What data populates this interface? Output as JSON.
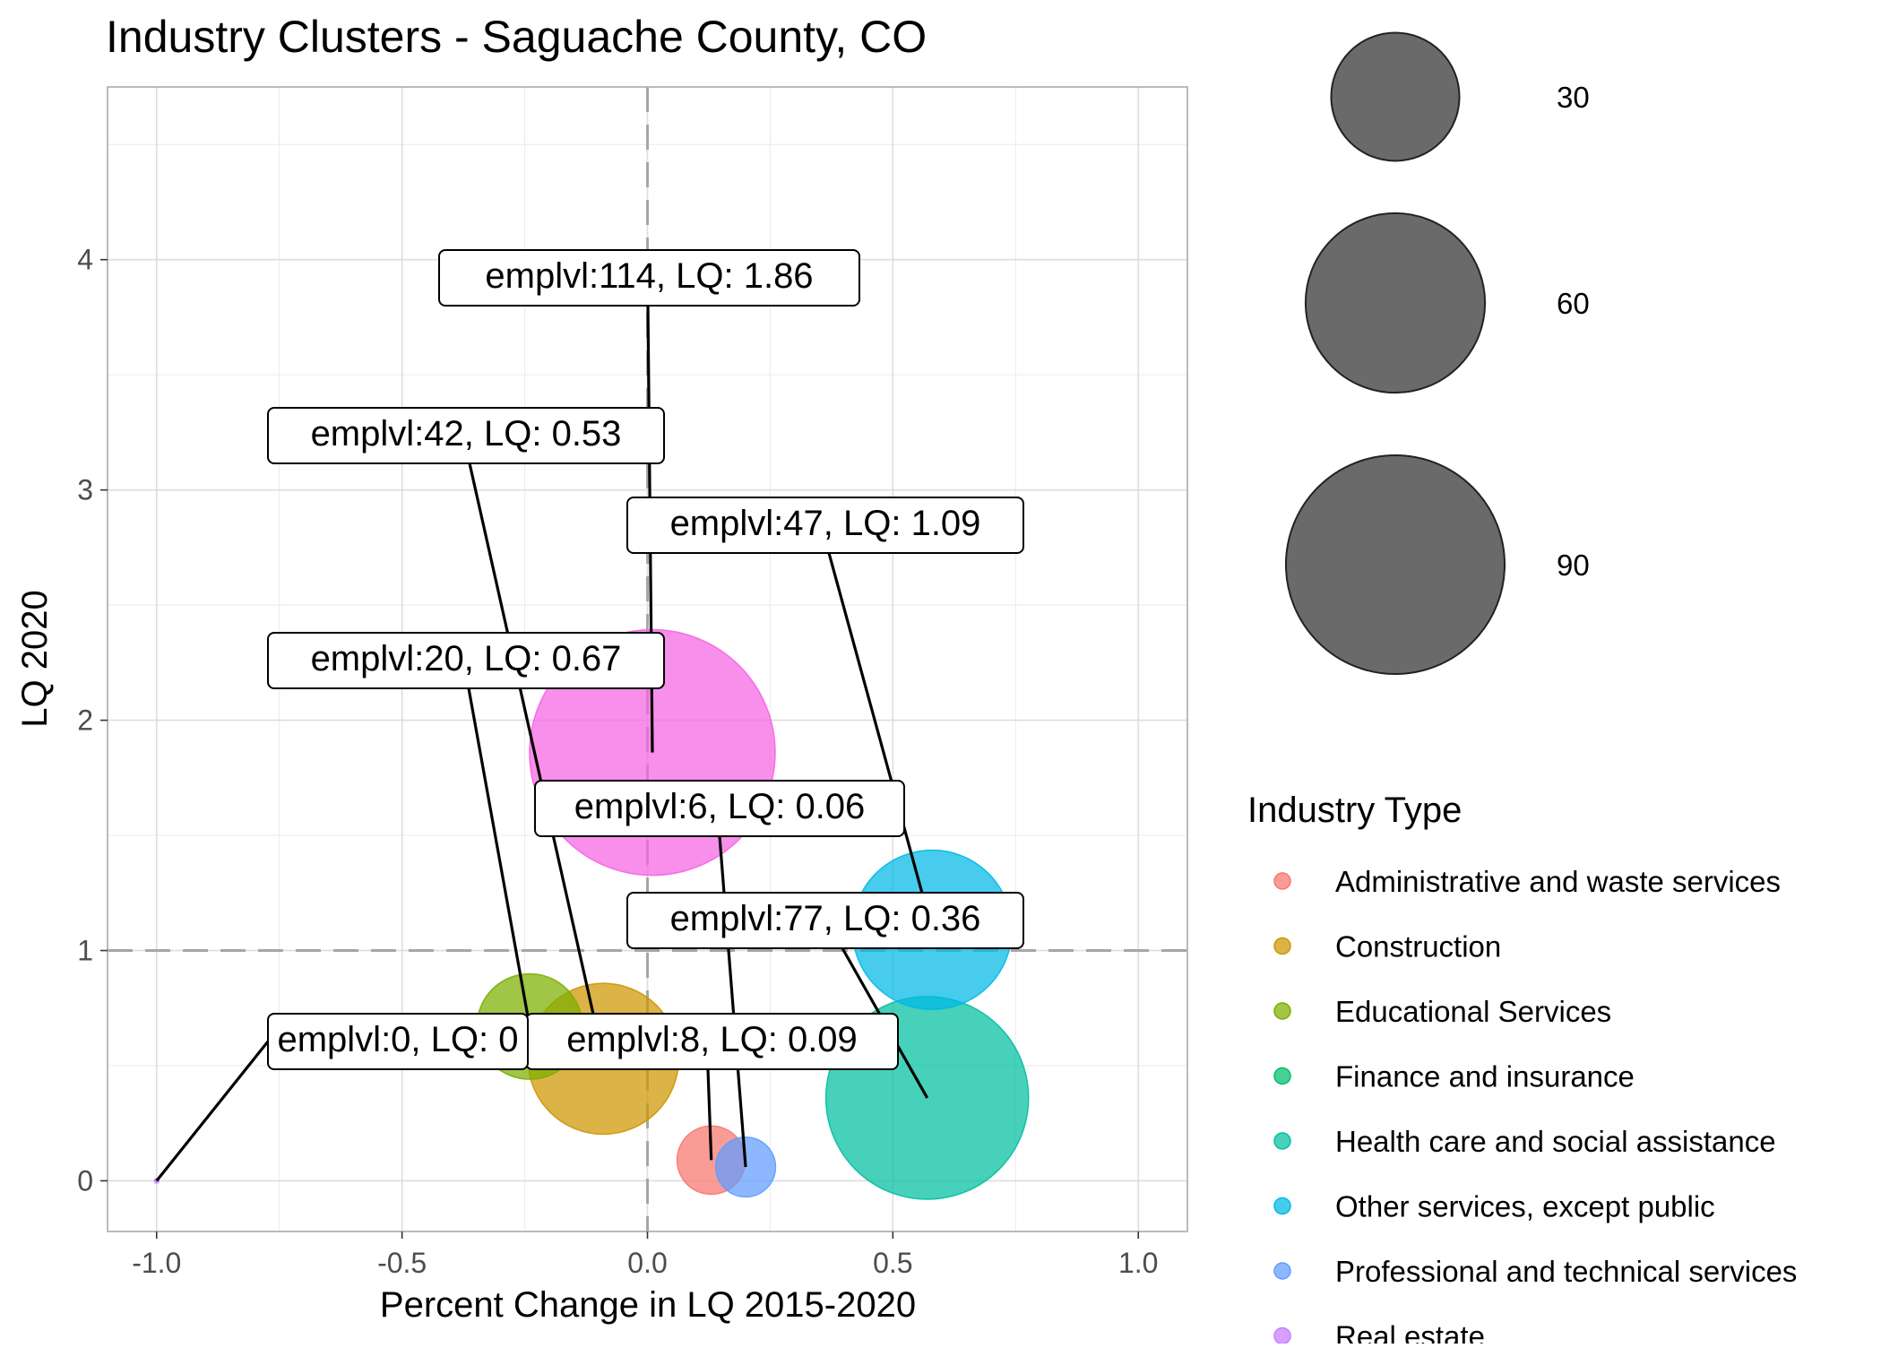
{
  "chart_data": {
    "type": "scatter",
    "title": "Industry Clusters - Saguache County, CO",
    "xlabel": "Percent Change in LQ 2015-2020",
    "ylabel": "LQ 2020",
    "xlim": [
      -1.1,
      1.1
    ],
    "ylim": [
      -0.22,
      4.75
    ],
    "x_ticks": [
      -1.0,
      -0.5,
      0.0,
      0.5,
      1.0
    ],
    "x_tick_labels": [
      "-1.0",
      "-0.5",
      "0.0",
      "0.5",
      "1.0"
    ],
    "y_ticks": [
      0,
      1,
      2,
      3,
      4
    ],
    "y_tick_labels": [
      "0",
      "1",
      "2",
      "3",
      "4"
    ],
    "reference_lines": {
      "x": 0,
      "y": 1
    },
    "grid": true,
    "size_legend": {
      "entries": [
        {
          "value": 30,
          "label": "30"
        },
        {
          "value": 60,
          "label": "60"
        },
        {
          "value": 90,
          "label": "90"
        }
      ]
    },
    "color_legend": {
      "title": "Industry Type",
      "placement": "right"
    },
    "series": [
      {
        "name": "Administrative and waste services",
        "color": "#F8766D",
        "x": 0.13,
        "y": 0.09,
        "emplvl": 8,
        "label": "emplvl:8, LQ: 0.09"
      },
      {
        "name": "Construction",
        "color": "#CD9600",
        "x": -0.09,
        "y": 0.53,
        "emplvl": 42,
        "label": "emplvl:42, LQ: 0.53"
      },
      {
        "name": "Educational Services",
        "color": "#7CAE00",
        "x": -0.24,
        "y": 0.67,
        "emplvl": 20,
        "label": "emplvl:20, LQ: 0.67"
      },
      {
        "name": "Finance and insurance",
        "color": "#00BE67",
        "x": null,
        "y": null,
        "emplvl": null,
        "label": ""
      },
      {
        "name": "Health care and social assistance",
        "color": "#00BFA0",
        "x": 0.57,
        "y": 0.36,
        "emplvl": 77,
        "label": "emplvl:77, LQ: 0.36"
      },
      {
        "name": "Other services, except public",
        "color": "#00B8E7",
        "x": 0.58,
        "y": 1.09,
        "emplvl": 47,
        "label": "emplvl:47, LQ: 1.09"
      },
      {
        "name": "Professional and technical services",
        "color": "#619CFF",
        "x": 0.2,
        "y": 0.06,
        "emplvl": 6,
        "label": "emplvl:6, LQ: 0.06"
      },
      {
        "name": "Real estate",
        "color": "#C77CFF",
        "x": -1.0,
        "y": 0.0,
        "emplvl": 0,
        "label": "emplvl:0, LQ: 0"
      },
      {
        "name": "",
        "color": "#F564E3",
        "x": 0.01,
        "y": 1.86,
        "emplvl": 114,
        "label": "emplvl:114, LQ: 1.86"
      }
    ]
  }
}
